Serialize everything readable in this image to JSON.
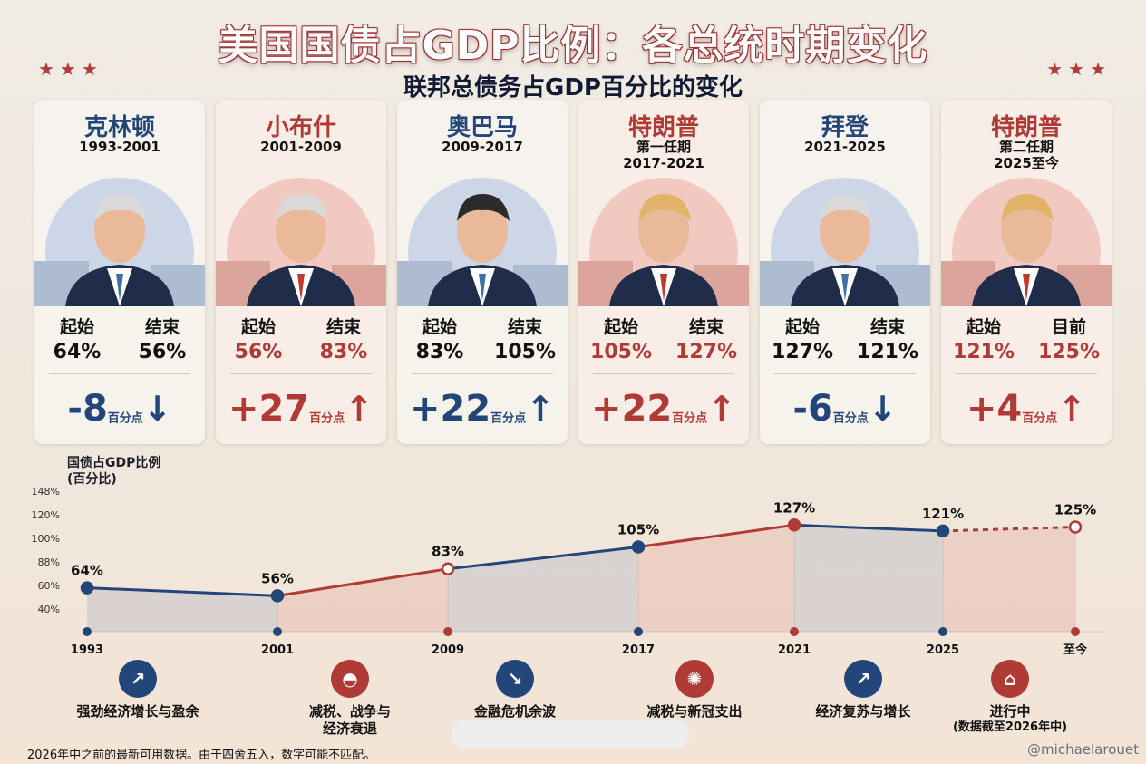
{
  "title": "美国国债占GDP比例：各总统时期变化",
  "subtitle": "联邦总债务占GDP百分比的变化",
  "stars": "★★★",
  "presidents": [
    {
      "name": "克林顿",
      "term_note": "",
      "years": "1993-2001",
      "start_label": "起始",
      "end_label": "结束",
      "start": "64%",
      "end": "56%",
      "change": "-8",
      "unit": "百分点",
      "arrow": "↓",
      "party_color": "#23467a"
    },
    {
      "name": "小布什",
      "term_note": "",
      "years": "2001-2009",
      "start_label": "起始",
      "end_label": "结束",
      "start": "56%",
      "end": "83%",
      "change": "+27",
      "unit": "百分点",
      "arrow": "↑",
      "party_color": "#b03a35"
    },
    {
      "name": "奥巴马",
      "term_note": "",
      "years": "2009-2017",
      "start_label": "起始",
      "end_label": "结束",
      "start": "83%",
      "end": "105%",
      "change": "+22",
      "unit": "百分点",
      "arrow": "↑",
      "party_color": "#23467a"
    },
    {
      "name": "特朗普",
      "term_note": "第一任期",
      "years": "2017-2021",
      "start_label": "起始",
      "end_label": "结束",
      "start": "105%",
      "end": "127%",
      "change": "+22",
      "unit": "百分点",
      "arrow": "↑",
      "party_color": "#b03a35"
    },
    {
      "name": "拜登",
      "term_note": "",
      "years": "2021-2025",
      "start_label": "起始",
      "end_label": "结束",
      "start": "127%",
      "end": "121%",
      "change": "-6",
      "unit": "百分点",
      "arrow": "↓",
      "party_color": "#23467a"
    },
    {
      "name": "特朗普",
      "term_note": "第二任期",
      "years": "2025至今",
      "start_label": "起始",
      "end_label": "目前",
      "start": "121%",
      "end": "125%",
      "change": "+4",
      "unit": "百分点",
      "arrow": "↑",
      "party_color": "#b03a35"
    }
  ],
  "chart_data": {
    "type": "line",
    "title": "",
    "ylabel": "国债占GDP比例",
    "ylabel_unit": "(百分比)",
    "x_labels": [
      "1993",
      "2001",
      "2009",
      "2017",
      "2021",
      "2025",
      "至今"
    ],
    "y_tick_labels": [
      "148%",
      "120%",
      "100%",
      "88%",
      "60%",
      "40%"
    ],
    "points": [
      {
        "x": "1993",
        "y": 64,
        "label": "64%",
        "color": "#23467a"
      },
      {
        "x": "2001",
        "y": 56,
        "label": "56%",
        "color": "#23467a"
      },
      {
        "x": "2009",
        "y": 83,
        "label": "83%",
        "color": "#b03a35"
      },
      {
        "x": "2017",
        "y": 105,
        "label": "105%",
        "color": "#23467a"
      },
      {
        "x": "2021",
        "y": 127,
        "label": "127%",
        "color": "#b03a35"
      },
      {
        "x": "2025",
        "y": 121,
        "label": "121%",
        "color": "#23467a"
      },
      {
        "x": "至今",
        "y": 125,
        "label": "125%",
        "color": "#b03a35",
        "projected": true
      }
    ],
    "grid": false
  },
  "events": [
    {
      "icon": "chart-up-icon",
      "label": "强劲经济增长与盈余",
      "label2": "",
      "color": "#23467a"
    },
    {
      "icon": "helmet-icon",
      "label": "减税、战争与",
      "label2": "经济衰退",
      "color": "#b03a35"
    },
    {
      "icon": "chart-down-icon",
      "label": "金融危机余波",
      "label2": "",
      "color": "#23467a"
    },
    {
      "icon": "virus-icon",
      "label": "减税与新冠支出",
      "label2": "",
      "color": "#b03a35"
    },
    {
      "icon": "chart-up-icon",
      "label": "经济复苏与增长",
      "label2": "",
      "color": "#23467a"
    },
    {
      "icon": "capitol-icon",
      "label": "进行中",
      "label2": "(数据截至2026年中)",
      "color": "#b03a35"
    }
  ],
  "footnote": "2026年中之前的最新可用数据。由于四舍五入，数字可能不匹配。",
  "handle": "@michaelarouet"
}
